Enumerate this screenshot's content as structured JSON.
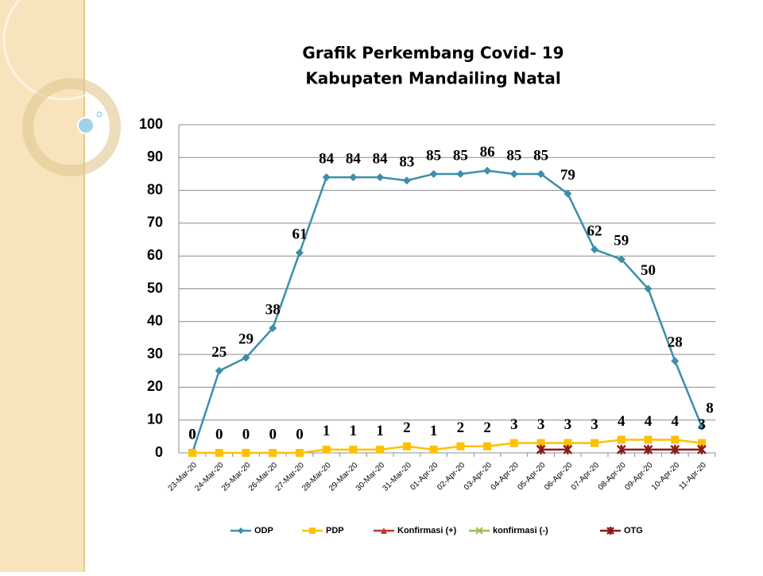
{
  "chart_data": {
    "type": "line",
    "title": "Grafik Perkembang Covid- 19",
    "subtitle": "Kabupaten Mandailing Natal",
    "categories": [
      "23-Mar-20",
      "24-Mar-20",
      "25-Mar-20",
      "26-Mar-20",
      "27-Mar-20",
      "28-Mar-20",
      "29-Mar-20",
      "30-Mar-20",
      "31-Mar-20",
      "01-Apr-20",
      "02-Apr-20",
      "03-Apr-20",
      "04-Apr-20",
      "05-Apr-20",
      "06-Apr-20",
      "07-Apr-20",
      "08-Apr-20",
      "09-Apr-20",
      "10-Apr-20",
      "11-Apr-20"
    ],
    "series": [
      {
        "name": "ODP",
        "color": "#3b8fa8",
        "marker": "diamond",
        "show_labels": true,
        "values": [
          0,
          25,
          29,
          38,
          61,
          84,
          84,
          84,
          83,
          85,
          85,
          86,
          85,
          85,
          79,
          62,
          59,
          50,
          28,
          8
        ]
      },
      {
        "name": "PDP",
        "color": "#ffc000",
        "marker": "square",
        "show_labels": true,
        "values": [
          0,
          0,
          0,
          0,
          0,
          1,
          1,
          1,
          2,
          1,
          2,
          2,
          3,
          3,
          3,
          3,
          4,
          4,
          4,
          3
        ]
      },
      {
        "name": "Konfirmasi (+)",
        "color": "#c0392b",
        "marker": "triangle",
        "show_labels": false,
        "values": [
          null,
          null,
          null,
          null,
          null,
          null,
          null,
          null,
          null,
          null,
          null,
          null,
          null,
          null,
          null,
          null,
          null,
          null,
          null,
          null
        ]
      },
      {
        "name": "konfirmasi (-)",
        "color": "#9bbb59",
        "marker": "x",
        "show_labels": false,
        "values": [
          null,
          null,
          null,
          null,
          null,
          null,
          null,
          null,
          null,
          null,
          null,
          null,
          null,
          null,
          null,
          null,
          null,
          null,
          null,
          null
        ]
      },
      {
        "name": "OTG",
        "color": "#8b1a1a",
        "marker": "star",
        "show_labels": false,
        "values": [
          null,
          null,
          null,
          null,
          null,
          null,
          null,
          null,
          null,
          null,
          null,
          null,
          null,
          1,
          1,
          null,
          1,
          1,
          1,
          1
        ]
      }
    ],
    "ylim": [
      0,
      100
    ],
    "yticks": [
      0,
      10,
      20,
      30,
      40,
      50,
      60,
      70,
      80,
      90,
      100
    ],
    "grid": true,
    "legend": "bottom"
  }
}
